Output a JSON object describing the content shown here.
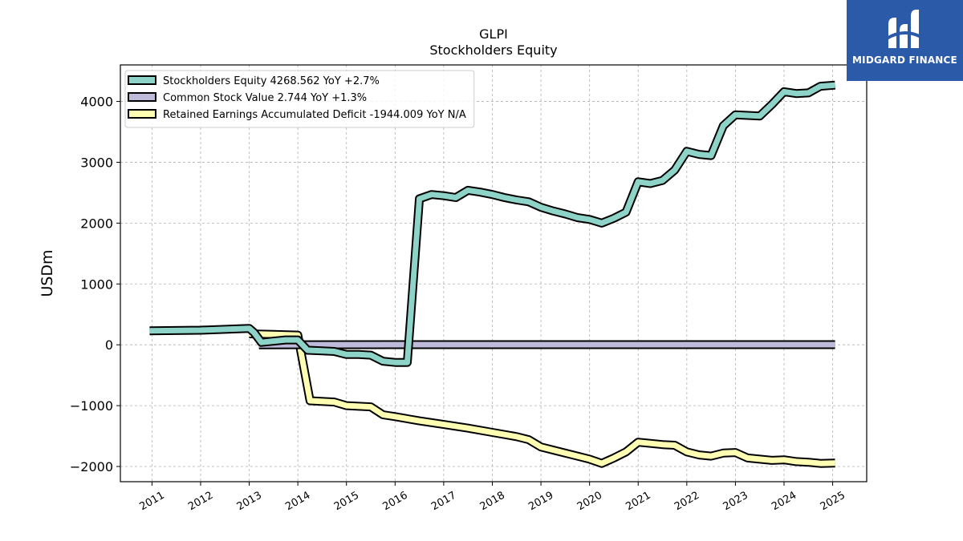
{
  "logo": {
    "text": "MIDGARD FINANCE",
    "bg": "#2a5aa8"
  },
  "chart_data": {
    "type": "line",
    "title": "GLPI",
    "subtitle": "Stockholders  Equity",
    "xlabel": "",
    "ylabel": "USDm",
    "xlim": [
      2010.35,
      2025.7
    ],
    "ylim": [
      -2250,
      4600
    ],
    "yticks": [
      -2000,
      -1000,
      0,
      1000,
      2000,
      3000,
      4000
    ],
    "xticks": [
      "2011",
      "2012",
      "2013",
      "2014",
      "2015",
      "2016",
      "2017",
      "2018",
      "2019",
      "2020",
      "2021",
      "2022",
      "2023",
      "2024",
      "2025"
    ],
    "grid": true,
    "legend_position": "top-left",
    "series": [
      {
        "name": "Stockholders Equity  4268.562 YoY +2.7%",
        "color": "#8dd3c7",
        "points": [
          [
            2010.95,
            230
          ],
          [
            2012.0,
            240
          ],
          [
            2013.0,
            270
          ],
          [
            2013.1,
            200
          ],
          [
            2013.25,
            40
          ],
          [
            2013.5,
            60
          ],
          [
            2013.75,
            80
          ],
          [
            2014.0,
            80
          ],
          [
            2014.2,
            -90
          ],
          [
            2014.5,
            -100
          ],
          [
            2014.75,
            -110
          ],
          [
            2015.0,
            -160
          ],
          [
            2015.25,
            -160
          ],
          [
            2015.5,
            -170
          ],
          [
            2015.75,
            -270
          ],
          [
            2016.0,
            -290
          ],
          [
            2016.25,
            -290
          ],
          [
            2016.5,
            2400
          ],
          [
            2016.75,
            2470
          ],
          [
            2017.0,
            2450
          ],
          [
            2017.25,
            2420
          ],
          [
            2017.5,
            2540
          ],
          [
            2017.75,
            2510
          ],
          [
            2018.0,
            2470
          ],
          [
            2018.25,
            2420
          ],
          [
            2018.5,
            2380
          ],
          [
            2018.75,
            2350
          ],
          [
            2019.0,
            2260
          ],
          [
            2019.25,
            2200
          ],
          [
            2019.5,
            2150
          ],
          [
            2019.75,
            2090
          ],
          [
            2020.0,
            2060
          ],
          [
            2020.25,
            2000
          ],
          [
            2020.5,
            2080
          ],
          [
            2020.75,
            2180
          ],
          [
            2021.0,
            2680
          ],
          [
            2021.25,
            2650
          ],
          [
            2021.5,
            2700
          ],
          [
            2021.75,
            2870
          ],
          [
            2022.0,
            3180
          ],
          [
            2022.25,
            3130
          ],
          [
            2022.5,
            3110
          ],
          [
            2022.75,
            3600
          ],
          [
            2023.0,
            3780
          ],
          [
            2023.25,
            3770
          ],
          [
            2023.5,
            3760
          ],
          [
            2023.75,
            3950
          ],
          [
            2024.0,
            4160
          ],
          [
            2024.25,
            4130
          ],
          [
            2024.5,
            4140
          ],
          [
            2024.75,
            4250
          ],
          [
            2025.05,
            4268.562
          ]
        ]
      },
      {
        "name": "Common Stock Value  2.744 YoY +1.3%",
        "color": "#bebada",
        "points": [
          [
            2013.2,
            0
          ],
          [
            2014.0,
            1.5
          ],
          [
            2016.0,
            2.0
          ],
          [
            2018.0,
            2.2
          ],
          [
            2020.0,
            2.5
          ],
          [
            2022.0,
            2.6
          ],
          [
            2025.05,
            2.744
          ]
        ]
      },
      {
        "name": "Retained Earnings Accumulated Deficit  -1944.009 YoY N/A",
        "color": "#ffffb3",
        "points": [
          [
            2013.0,
            180
          ],
          [
            2013.5,
            170
          ],
          [
            2014.0,
            160
          ],
          [
            2014.25,
            -920
          ],
          [
            2014.75,
            -940
          ],
          [
            2015.0,
            -1000
          ],
          [
            2015.5,
            -1020
          ],
          [
            2015.75,
            -1150
          ],
          [
            2016.0,
            -1180
          ],
          [
            2016.5,
            -1250
          ],
          [
            2017.0,
            -1310
          ],
          [
            2017.5,
            -1370
          ],
          [
            2018.0,
            -1440
          ],
          [
            2018.5,
            -1510
          ],
          [
            2018.75,
            -1560
          ],
          [
            2019.0,
            -1680
          ],
          [
            2019.25,
            -1730
          ],
          [
            2019.75,
            -1830
          ],
          [
            2020.0,
            -1880
          ],
          [
            2020.25,
            -1950
          ],
          [
            2020.5,
            -1860
          ],
          [
            2020.75,
            -1760
          ],
          [
            2021.0,
            -1600
          ],
          [
            2021.25,
            -1620
          ],
          [
            2021.5,
            -1640
          ],
          [
            2021.75,
            -1650
          ],
          [
            2022.0,
            -1760
          ],
          [
            2022.25,
            -1810
          ],
          [
            2022.5,
            -1830
          ],
          [
            2022.75,
            -1780
          ],
          [
            2023.0,
            -1770
          ],
          [
            2023.25,
            -1860
          ],
          [
            2023.5,
            -1880
          ],
          [
            2023.75,
            -1900
          ],
          [
            2024.0,
            -1890
          ],
          [
            2024.25,
            -1920
          ],
          [
            2024.5,
            -1930
          ],
          [
            2024.75,
            -1950
          ],
          [
            2025.05,
            -1944.009
          ]
        ]
      }
    ]
  }
}
